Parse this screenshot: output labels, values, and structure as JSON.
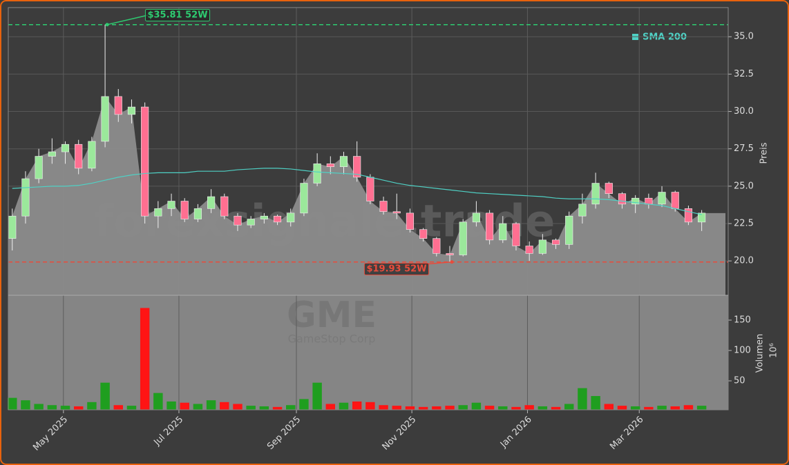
{
  "chart_data": {
    "type": "candlestick",
    "categories": [
      null,
      null,
      null,
      null,
      null,
      null,
      null,
      null,
      null,
      null,
      null,
      null,
      null,
      null,
      null,
      null,
      null,
      null,
      null,
      null,
      null,
      null,
      null,
      null,
      null,
      null,
      null,
      null,
      null,
      null,
      null,
      null,
      null,
      null,
      null,
      null,
      null,
      null,
      null,
      null,
      null,
      null,
      null,
      null,
      null,
      null,
      null,
      null,
      null,
      null,
      null,
      null,
      null
    ],
    "open": [
      21.5,
      23,
      25.5,
      27,
      27.3,
      27.8,
      26.2,
      28,
      31,
      29.8,
      30.3,
      23,
      23.5,
      24,
      22.8,
      23.5,
      24.3,
      23,
      22.4,
      22.8,
      23,
      22.6,
      23.2,
      25.2,
      26.5,
      26.3,
      27,
      25.6,
      24,
      23.3,
      23.2,
      22.1,
      21.5,
      20.5,
      20.4,
      22.6,
      23.2,
      21.4,
      22.5,
      21,
      20.5,
      21.4,
      21.1,
      23,
      23.8,
      25.2,
      24.5,
      23.8,
      24.2,
      23.8,
      24.6,
      23.5,
      22.6
    ],
    "high": [
      23.5,
      26,
      27.5,
      28.2,
      28,
      28.1,
      28.3,
      35.81,
      31.5,
      30.8,
      30.6,
      24,
      24.5,
      24.2,
      23.8,
      24.8,
      24.5,
      23.2,
      23,
      23.2,
      23.1,
      23.5,
      25.5,
      27.2,
      27,
      27.3,
      28,
      25.8,
      24.3,
      24.5,
      23.5,
      22.2,
      21.6,
      21,
      22.8,
      24,
      23.4,
      23,
      22.6,
      21.3,
      21.8,
      21.5,
      23.3,
      24.5,
      25.9,
      25.3,
      24.6,
      24.4,
      24.5,
      25,
      24.7,
      23.7,
      23.4
    ],
    "low": [
      20.7,
      22.5,
      25.2,
      26.5,
      26.5,
      25.8,
      26,
      27.6,
      29.3,
      29.2,
      22.5,
      22.2,
      23,
      22.6,
      22.6,
      23.2,
      22.8,
      22,
      22.2,
      22.5,
      22.4,
      22.3,
      23,
      25,
      25.8,
      25.8,
      25.3,
      23.8,
      23.1,
      22.8,
      21.9,
      21.3,
      20.3,
      19.93,
      20.3,
      22.3,
      21.1,
      21.2,
      20.7,
      20,
      20.4,
      20.8,
      20.8,
      22.5,
      23.5,
      24.2,
      23.5,
      23.2,
      23.5,
      23.6,
      23.3,
      22.4,
      22
    ],
    "close": [
      23,
      25.5,
      27,
      27.3,
      27.8,
      26.2,
      28,
      31,
      29.8,
      30.3,
      23,
      23.5,
      24,
      22.8,
      23.5,
      24.3,
      23,
      22.4,
      22.8,
      23,
      22.6,
      23.2,
      25.2,
      26.5,
      26.3,
      27,
      25.6,
      24,
      23.3,
      23.2,
      22.1,
      21.5,
      20.5,
      20.4,
      22.6,
      23.2,
      21.4,
      22.5,
      21,
      20.5,
      21.4,
      21.1,
      23,
      23.8,
      25.2,
      24.5,
      23.8,
      24.2,
      23.8,
      24.6,
      23.5,
      22.6,
      23.2
    ],
    "up_color": "#9be89b",
    "down_color": "#ff6f91",
    "area_color": "#8c8c8c",
    "sma": {
      "name": "SMA 200",
      "color": "#4fd1c5",
      "values": [
        24.85,
        24.9,
        24.95,
        25,
        25,
        25.05,
        25.2,
        25.4,
        25.6,
        25.75,
        25.85,
        25.9,
        25.9,
        25.9,
        26,
        26,
        26,
        26.1,
        26.15,
        26.2,
        26.2,
        26.15,
        26.05,
        25.95,
        25.9,
        25.85,
        25.8,
        25.6,
        25.4,
        25.2,
        25.05,
        24.95,
        24.85,
        24.75,
        24.65,
        24.55,
        24.5,
        24.45,
        24.4,
        24.35,
        24.3,
        24.2,
        24.15,
        24.15,
        24.15,
        24.1,
        24,
        23.9,
        23.8,
        23.7,
        23.5,
        23.3,
        23.1
      ]
    },
    "high_52w": {
      "value": 35.81,
      "label": "$35.81 52W",
      "color": "#2ecc71"
    },
    "low_52w": {
      "value": 19.93,
      "label": "$19.93 52W",
      "color": "#e74c3c"
    },
    "ylabel": "Preis",
    "ylim": [
      17.7,
      36.95
    ],
    "yticks": [
      {
        "value": 20,
        "label": "20.0"
      },
      {
        "value": 22.5,
        "label": "22.5"
      },
      {
        "value": 25,
        "label": "25.0"
      },
      {
        "value": 27.5,
        "label": "27.5"
      },
      {
        "value": 30,
        "label": "30.0"
      },
      {
        "value": 32.5,
        "label": "32.5"
      },
      {
        "value": 35,
        "label": "35.0"
      }
    ],
    "xlim": [
      -0.3,
      54
    ],
    "xticks": [
      {
        "value": 3.86,
        "label": "May 2025"
      },
      {
        "value": 12.57,
        "label": "Jul 2025"
      },
      {
        "value": 21.43,
        "label": "Sep 2025"
      },
      {
        "value": 30.14,
        "label": "Nov 2025"
      },
      {
        "value": 38.86,
        "label": "Jan 2026"
      },
      {
        "value": 47.29,
        "label": "Mar 2026"
      }
    ],
    "grid": true,
    "volume": {
      "label": "Volumen",
      "unit": "10⁶",
      "ylim": [
        2.3,
        190.9
      ],
      "yticks": [
        50,
        100,
        150
      ],
      "values": [
        22,
        18,
        12,
        10,
        9,
        8,
        15,
        47,
        10,
        9,
        170,
        30,
        16,
        14,
        12,
        18,
        15,
        12,
        9,
        8,
        7,
        10,
        20,
        47,
        12,
        14,
        16,
        15,
        10,
        9,
        8,
        7,
        8,
        9,
        10,
        14,
        9,
        8,
        7,
        10,
        8,
        7,
        12,
        38,
        25,
        12,
        9,
        8,
        7,
        9,
        8,
        10,
        9
      ]
    },
    "watermark": "forexsignale.trade",
    "ticker": "GME",
    "company": "GameStop Corp"
  }
}
